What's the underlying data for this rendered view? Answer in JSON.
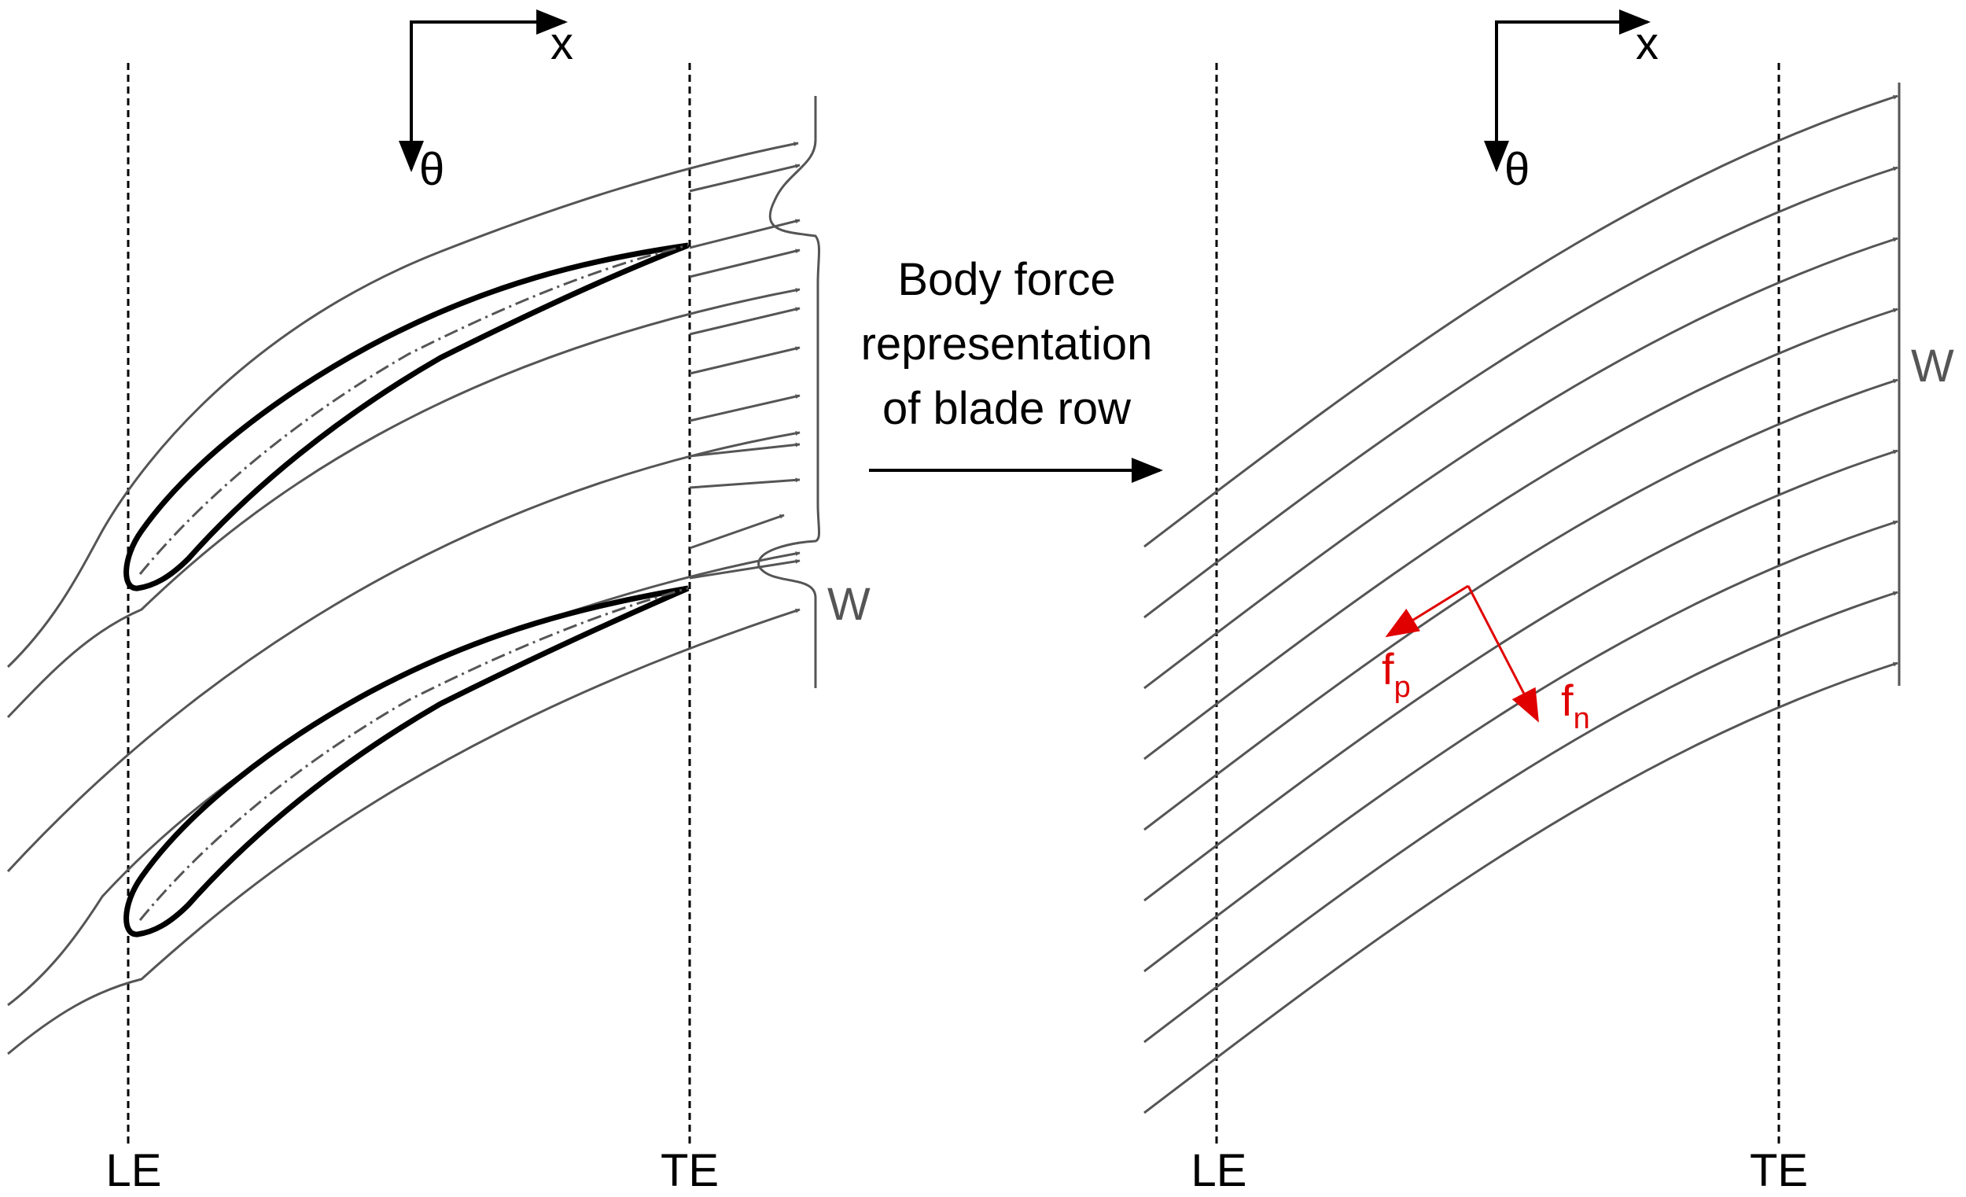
{
  "left_panel": {
    "axis_x_label": "x",
    "axis_theta_label": "θ",
    "le_label": "LE",
    "te_label": "TE",
    "w_label": "W"
  },
  "center": {
    "caption_line1": "Body force",
    "caption_line2": "representation",
    "caption_line3": "of blade row"
  },
  "right_panel": {
    "axis_x_label": "x",
    "axis_theta_label": "θ",
    "le_label": "LE",
    "te_label": "TE",
    "w_label": "W",
    "fp_base": "f",
    "fp_sub": "p",
    "fn_base": "f",
    "fn_sub": "n"
  },
  "colors": {
    "streamline": "#555555",
    "blade": "#000000",
    "force": "#e00000"
  }
}
